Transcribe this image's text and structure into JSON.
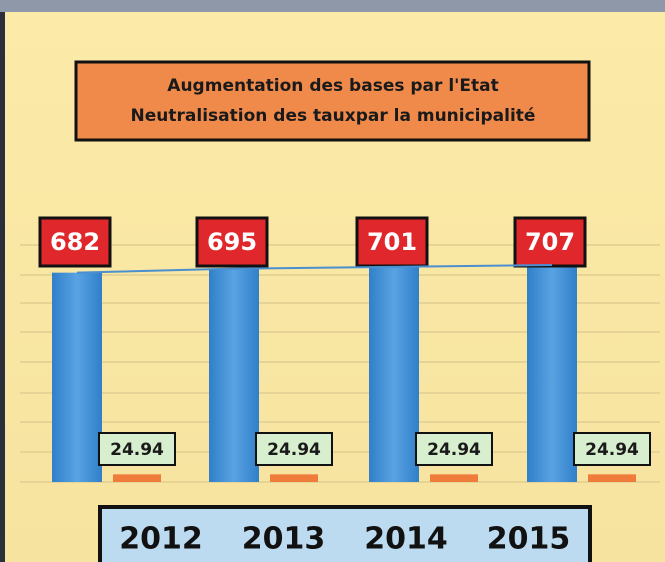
{
  "chart_data": {
    "type": "bar",
    "title": "Augmentation des bases par l'Etat",
    "subtitle": "Neutralisation des tauxpar la municipalité",
    "categories": [
      "2012",
      "2013",
      "2014",
      "2015"
    ],
    "series": [
      {
        "color": "#3f8fd6",
        "values": [
          682,
          695,
          701,
          707
        ]
      },
      {
        "color": "#f07c3c",
        "values": [
          24.94,
          24.94,
          24.94,
          24.94
        ]
      }
    ],
    "ylim": [
      0,
      720
    ]
  }
}
